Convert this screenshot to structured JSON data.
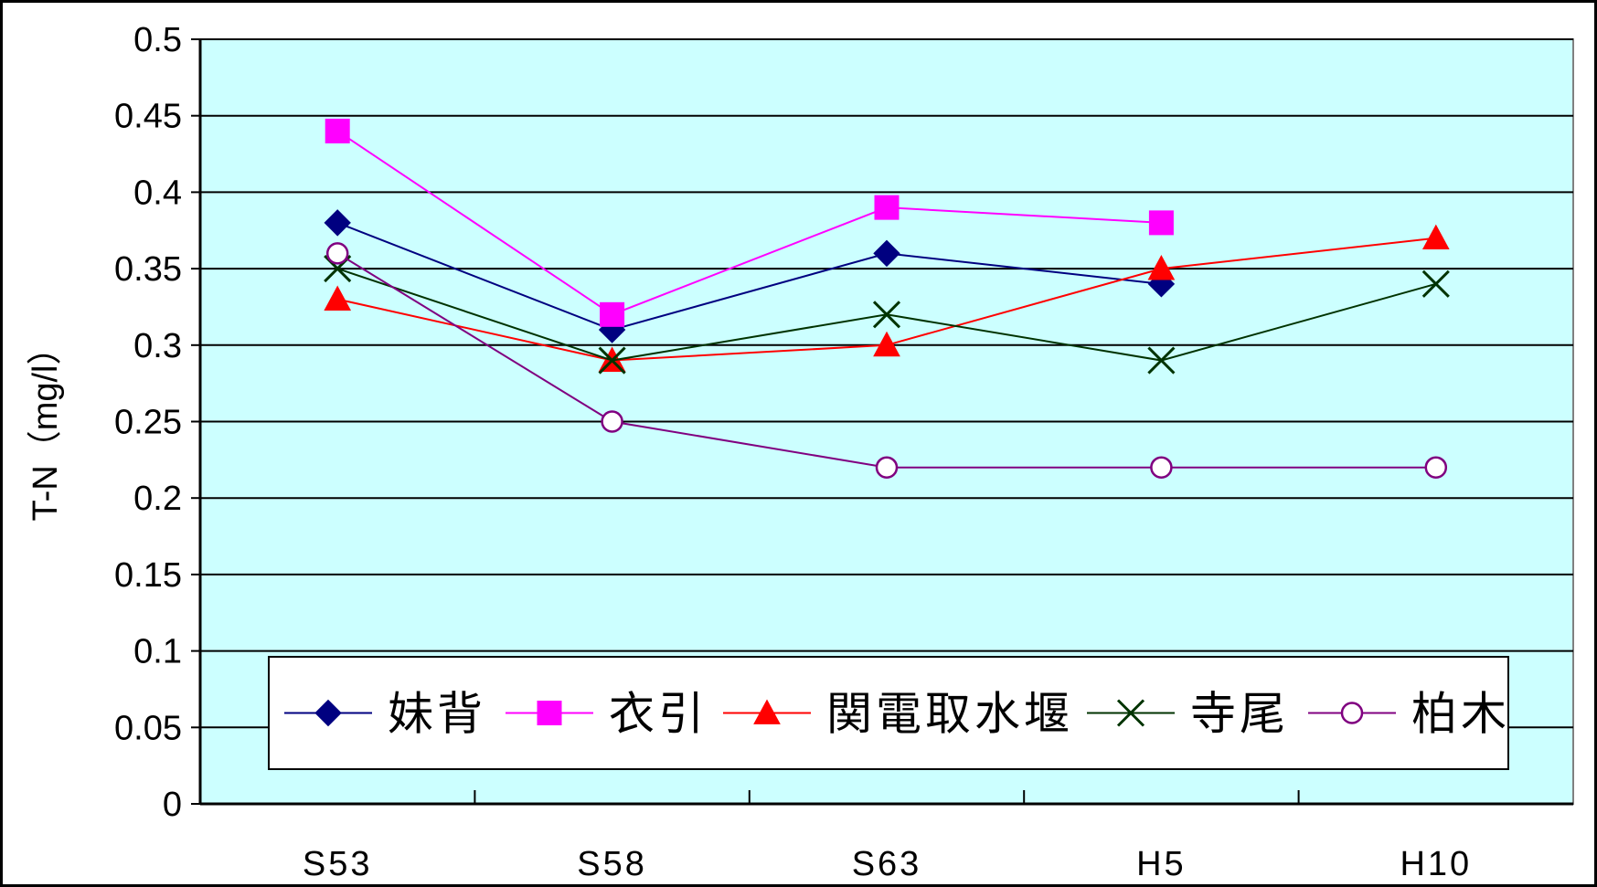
{
  "chart_data": {
    "type": "line",
    "title": "",
    "xlabel": "",
    "ylabel": "T-N（mg/l）",
    "categories": [
      "S53",
      "S58",
      "S63",
      "H5",
      "H10"
    ],
    "ylim": [
      0,
      0.5
    ],
    "yticks": [
      "0",
      "0.05",
      "0.1",
      "0.15",
      "0.2",
      "0.25",
      "0.3",
      "0.35",
      "0.4",
      "0.45",
      "0.5"
    ],
    "grid": true,
    "legend_position": "bottom-inside",
    "plot_background": "#ccffff",
    "series": [
      {
        "name": "妹背",
        "values": [
          0.38,
          0.31,
          0.36,
          0.34,
          null
        ],
        "color": "#000080",
        "marker": "diamond"
      },
      {
        "name": "衣引",
        "values": [
          0.44,
          0.32,
          0.39,
          0.38,
          null
        ],
        "color": "#ff00ff",
        "marker": "square"
      },
      {
        "name": "関電取水堰",
        "values": [
          0.33,
          0.29,
          0.3,
          0.35,
          0.37
        ],
        "color": "#ff0000",
        "marker": "triangle"
      },
      {
        "name": "寺尾",
        "values": [
          0.35,
          0.29,
          0.32,
          0.29,
          0.34
        ],
        "color": "#003300",
        "marker": "x"
      },
      {
        "name": "柏木",
        "values": [
          0.36,
          0.25,
          0.22,
          0.22,
          0.22
        ],
        "color": "#800080",
        "marker": "circle"
      }
    ]
  }
}
